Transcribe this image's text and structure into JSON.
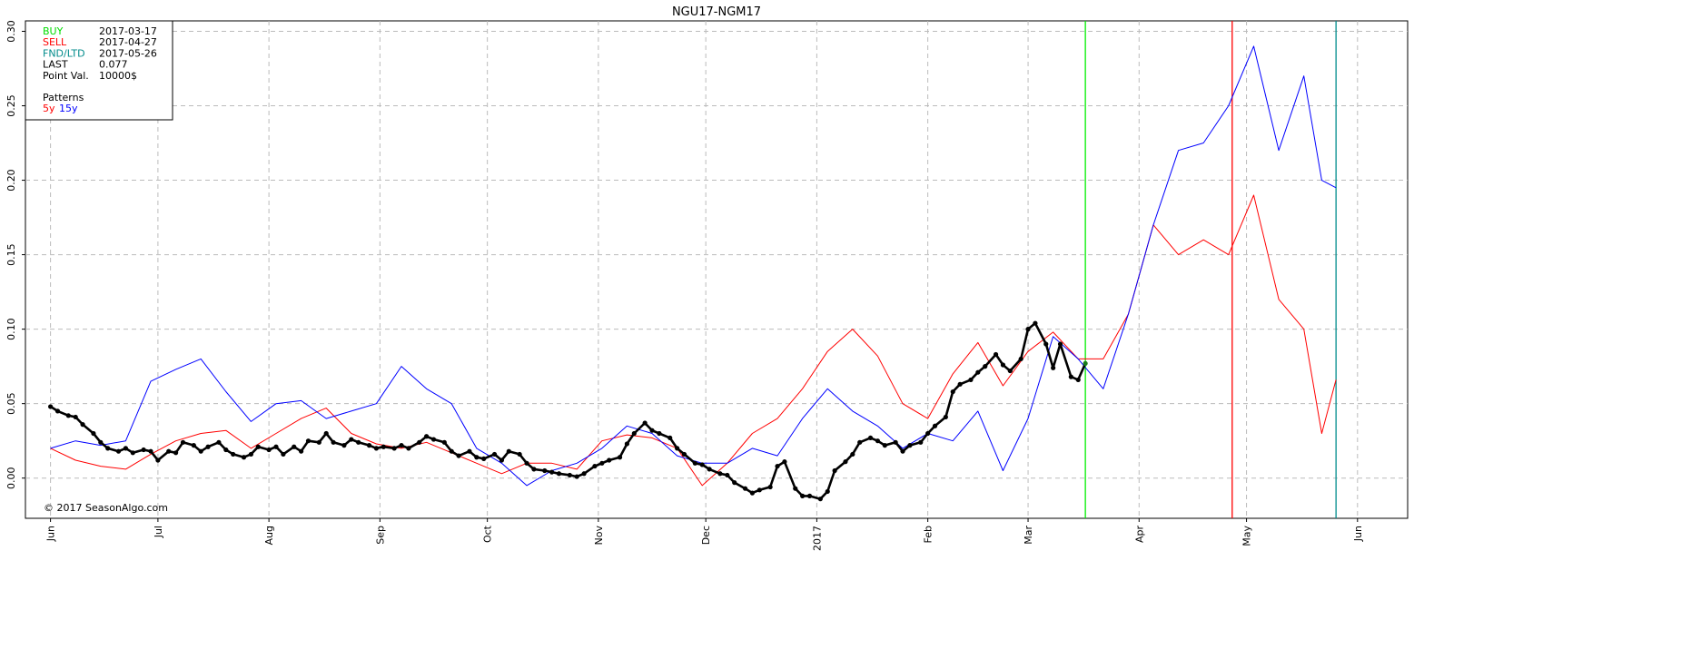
{
  "chart_data": {
    "type": "line",
    "title": "NGU17-NGM17",
    "xlabel": "",
    "ylabel": "",
    "ylim": [
      -0.027,
      0.307
    ],
    "xlim": [
      "2016-05-25",
      "2017-06-15"
    ],
    "grid": true,
    "legend_placement": "top-left",
    "y_ticks": [
      0.0,
      0.05,
      0.1,
      0.15,
      0.2,
      0.25,
      0.3
    ],
    "y_tick_labels": [
      "0.00",
      "0.05",
      "0.10",
      "0.15",
      "0.20",
      "0.25",
      "0.30"
    ],
    "x_ticks": [
      {
        "date": "2016-06-01",
        "label": "Jun"
      },
      {
        "date": "2016-07-01",
        "label": "Jul"
      },
      {
        "date": "2016-08-01",
        "label": "Aug"
      },
      {
        "date": "2016-09-01",
        "label": "Sep"
      },
      {
        "date": "2016-10-01",
        "label": "Oct"
      },
      {
        "date": "2016-11-01",
        "label": "Nov"
      },
      {
        "date": "2016-12-01",
        "label": "Dec"
      },
      {
        "date": "2017-01-01",
        "label": "2017"
      },
      {
        "date": "2017-02-01",
        "label": "Feb"
      },
      {
        "date": "2017-03-01",
        "label": "Mar"
      },
      {
        "date": "2017-04-01",
        "label": "Apr"
      },
      {
        "date": "2017-05-01",
        "label": "May"
      },
      {
        "date": "2017-06-01",
        "label": "Jun"
      }
    ],
    "vertical_markers": [
      {
        "date": "2017-03-17",
        "color": "#00ee00"
      },
      {
        "date": "2017-04-27",
        "color": "#ff0000"
      },
      {
        "date": "2017-05-26",
        "color": "#008b8b"
      }
    ],
    "series": [
      {
        "name": "actual",
        "color": "#000000",
        "markers": true,
        "points": [
          [
            "2016-06-01",
            0.048
          ],
          [
            "2016-06-03",
            0.045
          ],
          [
            "2016-06-06",
            0.042
          ],
          [
            "2016-06-08",
            0.041
          ],
          [
            "2016-06-10",
            0.036
          ],
          [
            "2016-06-13",
            0.03
          ],
          [
            "2016-06-15",
            0.024
          ],
          [
            "2016-06-17",
            0.02
          ],
          [
            "2016-06-20",
            0.018
          ],
          [
            "2016-06-22",
            0.02
          ],
          [
            "2016-06-24",
            0.017
          ],
          [
            "2016-06-27",
            0.019
          ],
          [
            "2016-06-29",
            0.018
          ],
          [
            "2016-07-01",
            0.012
          ],
          [
            "2016-07-04",
            0.018
          ],
          [
            "2016-07-06",
            0.017
          ],
          [
            "2016-07-08",
            0.024
          ],
          [
            "2016-07-11",
            0.022
          ],
          [
            "2016-07-13",
            0.018
          ],
          [
            "2016-07-15",
            0.021
          ],
          [
            "2016-07-18",
            0.024
          ],
          [
            "2016-07-20",
            0.019
          ],
          [
            "2016-07-22",
            0.016
          ],
          [
            "2016-07-25",
            0.014
          ],
          [
            "2016-07-27",
            0.016
          ],
          [
            "2016-07-29",
            0.021
          ],
          [
            "2016-08-01",
            0.019
          ],
          [
            "2016-08-03",
            0.021
          ],
          [
            "2016-08-05",
            0.016
          ],
          [
            "2016-08-08",
            0.021
          ],
          [
            "2016-08-10",
            0.018
          ],
          [
            "2016-08-12",
            0.025
          ],
          [
            "2016-08-15",
            0.024
          ],
          [
            "2016-08-17",
            0.03
          ],
          [
            "2016-08-19",
            0.024
          ],
          [
            "2016-08-22",
            0.022
          ],
          [
            "2016-08-24",
            0.026
          ],
          [
            "2016-08-26",
            0.024
          ],
          [
            "2016-08-29",
            0.022
          ],
          [
            "2016-08-31",
            0.02
          ],
          [
            "2016-09-02",
            0.021
          ],
          [
            "2016-09-05",
            0.02
          ],
          [
            "2016-09-07",
            0.022
          ],
          [
            "2016-09-09",
            0.02
          ],
          [
            "2016-09-12",
            0.024
          ],
          [
            "2016-09-14",
            0.028
          ],
          [
            "2016-09-16",
            0.026
          ],
          [
            "2016-09-19",
            0.024
          ],
          [
            "2016-09-21",
            0.018
          ],
          [
            "2016-09-23",
            0.015
          ],
          [
            "2016-09-26",
            0.018
          ],
          [
            "2016-09-28",
            0.014
          ],
          [
            "2016-09-30",
            0.013
          ],
          [
            "2016-10-03",
            0.016
          ],
          [
            "2016-10-05",
            0.012
          ],
          [
            "2016-10-07",
            0.018
          ],
          [
            "2016-10-10",
            0.016
          ],
          [
            "2016-10-12",
            0.01
          ],
          [
            "2016-10-14",
            0.006
          ],
          [
            "2016-10-17",
            0.005
          ],
          [
            "2016-10-19",
            0.004
          ],
          [
            "2016-10-21",
            0.003
          ],
          [
            "2016-10-24",
            0.002
          ],
          [
            "2016-10-26",
            0.001
          ],
          [
            "2016-10-28",
            0.003
          ],
          [
            "2016-10-31",
            0.008
          ],
          [
            "2016-11-02",
            0.01
          ],
          [
            "2016-11-04",
            0.012
          ],
          [
            "2016-11-07",
            0.014
          ],
          [
            "2016-11-09",
            0.023
          ],
          [
            "2016-11-11",
            0.03
          ],
          [
            "2016-11-14",
            0.037
          ],
          [
            "2016-11-16",
            0.032
          ],
          [
            "2016-11-18",
            0.03
          ],
          [
            "2016-11-21",
            0.027
          ],
          [
            "2016-11-23",
            0.02
          ],
          [
            "2016-11-25",
            0.016
          ],
          [
            "2016-11-28",
            0.01
          ],
          [
            "2016-11-30",
            0.009
          ],
          [
            "2016-12-02",
            0.006
          ],
          [
            "2016-12-05",
            0.003
          ],
          [
            "2016-12-07",
            0.002
          ],
          [
            "2016-12-09",
            -0.003
          ],
          [
            "2016-12-12",
            -0.007
          ],
          [
            "2016-12-14",
            -0.01
          ],
          [
            "2016-12-16",
            -0.008
          ],
          [
            "2016-12-19",
            -0.006
          ],
          [
            "2016-12-21",
            0.008
          ],
          [
            "2016-12-23",
            0.011
          ],
          [
            "2016-12-26",
            -0.007
          ],
          [
            "2016-12-28",
            -0.012
          ],
          [
            "2016-12-30",
            -0.012
          ],
          [
            "2017-01-02",
            -0.014
          ],
          [
            "2017-01-04",
            -0.009
          ],
          [
            "2017-01-06",
            0.005
          ],
          [
            "2017-01-09",
            0.011
          ],
          [
            "2017-01-11",
            0.016
          ],
          [
            "2017-01-13",
            0.024
          ],
          [
            "2017-01-16",
            0.027
          ],
          [
            "2017-01-18",
            0.025
          ],
          [
            "2017-01-20",
            0.022
          ],
          [
            "2017-01-23",
            0.024
          ],
          [
            "2017-01-25",
            0.018
          ],
          [
            "2017-01-27",
            0.022
          ],
          [
            "2017-01-30",
            0.024
          ],
          [
            "2017-02-01",
            0.03
          ],
          [
            "2017-02-03",
            0.035
          ],
          [
            "2017-02-06",
            0.041
          ],
          [
            "2017-02-08",
            0.058
          ],
          [
            "2017-02-10",
            0.063
          ],
          [
            "2017-02-13",
            0.066
          ],
          [
            "2017-02-15",
            0.071
          ],
          [
            "2017-02-17",
            0.075
          ],
          [
            "2017-02-20",
            0.083
          ],
          [
            "2017-02-22",
            0.076
          ],
          [
            "2017-02-24",
            0.072
          ],
          [
            "2017-02-27",
            0.08
          ],
          [
            "2017-03-01",
            0.1
          ],
          [
            "2017-03-03",
            0.104
          ],
          [
            "2017-03-06",
            0.09
          ],
          [
            "2017-03-08",
            0.074
          ],
          [
            "2017-03-10",
            0.09
          ],
          [
            "2017-03-13",
            0.068
          ],
          [
            "2017-03-15",
            0.066
          ],
          [
            "2017-03-17",
            0.077
          ]
        ]
      },
      {
        "name": "5y",
        "color": "#ff0000",
        "markers": false,
        "points": [
          [
            "2016-06-01",
            0.02
          ],
          [
            "2016-06-08",
            0.012
          ],
          [
            "2016-06-15",
            0.008
          ],
          [
            "2016-06-22",
            0.006
          ],
          [
            "2016-06-29",
            0.016
          ],
          [
            "2016-07-06",
            0.025
          ],
          [
            "2016-07-13",
            0.03
          ],
          [
            "2016-07-20",
            0.032
          ],
          [
            "2016-07-27",
            0.02
          ],
          [
            "2016-08-03",
            0.03
          ],
          [
            "2016-08-10",
            0.04
          ],
          [
            "2016-08-17",
            0.047
          ],
          [
            "2016-08-24",
            0.03
          ],
          [
            "2016-08-31",
            0.023
          ],
          [
            "2016-09-07",
            0.02
          ],
          [
            "2016-09-14",
            0.024
          ],
          [
            "2016-09-21",
            0.017
          ],
          [
            "2016-09-28",
            0.01
          ],
          [
            "2016-10-05",
            0.003
          ],
          [
            "2016-10-12",
            0.01
          ],
          [
            "2016-10-19",
            0.01
          ],
          [
            "2016-10-26",
            0.006
          ],
          [
            "2016-11-02",
            0.025
          ],
          [
            "2016-11-09",
            0.029
          ],
          [
            "2016-11-16",
            0.027
          ],
          [
            "2016-11-23",
            0.02
          ],
          [
            "2016-11-30",
            -0.005
          ],
          [
            "2016-12-07",
            0.01
          ],
          [
            "2016-12-14",
            0.03
          ],
          [
            "2016-12-21",
            0.04
          ],
          [
            "2016-12-28",
            0.06
          ],
          [
            "2017-01-04",
            0.085
          ],
          [
            "2017-01-11",
            0.1
          ],
          [
            "2017-01-18",
            0.082
          ],
          [
            "2017-01-25",
            0.05
          ],
          [
            "2017-02-01",
            0.04
          ],
          [
            "2017-02-08",
            0.07
          ],
          [
            "2017-02-15",
            0.091
          ],
          [
            "2017-02-22",
            0.062
          ],
          [
            "2017-03-01",
            0.085
          ],
          [
            "2017-03-08",
            0.098
          ],
          [
            "2017-03-15",
            0.08
          ],
          [
            "2017-03-22",
            0.08
          ],
          [
            "2017-03-29",
            0.11
          ],
          [
            "2017-04-05",
            0.17
          ],
          [
            "2017-04-12",
            0.15
          ],
          [
            "2017-04-19",
            0.16
          ],
          [
            "2017-04-26",
            0.15
          ],
          [
            "2017-05-03",
            0.19
          ],
          [
            "2017-05-10",
            0.12
          ],
          [
            "2017-05-17",
            0.1
          ],
          [
            "2017-05-22",
            0.03
          ],
          [
            "2017-05-26",
            0.066
          ]
        ]
      },
      {
        "name": "15y",
        "color": "#0000ff",
        "markers": false,
        "points": [
          [
            "2016-06-01",
            0.02
          ],
          [
            "2016-06-08",
            0.025
          ],
          [
            "2016-06-15",
            0.022
          ],
          [
            "2016-06-22",
            0.025
          ],
          [
            "2016-06-29",
            0.065
          ],
          [
            "2016-07-06",
            0.073
          ],
          [
            "2016-07-13",
            0.08
          ],
          [
            "2016-07-20",
            0.058
          ],
          [
            "2016-07-27",
            0.038
          ],
          [
            "2016-08-03",
            0.05
          ],
          [
            "2016-08-10",
            0.052
          ],
          [
            "2016-08-17",
            0.04
          ],
          [
            "2016-08-24",
            0.045
          ],
          [
            "2016-08-31",
            0.05
          ],
          [
            "2016-09-07",
            0.075
          ],
          [
            "2016-09-14",
            0.06
          ],
          [
            "2016-09-21",
            0.05
          ],
          [
            "2016-09-28",
            0.02
          ],
          [
            "2016-10-05",
            0.01
          ],
          [
            "2016-10-12",
            -0.005
          ],
          [
            "2016-10-19",
            0.005
          ],
          [
            "2016-10-26",
            0.01
          ],
          [
            "2016-11-02",
            0.02
          ],
          [
            "2016-11-09",
            0.035
          ],
          [
            "2016-11-16",
            0.03
          ],
          [
            "2016-11-23",
            0.015
          ],
          [
            "2016-11-30",
            0.01
          ],
          [
            "2016-12-07",
            0.01
          ],
          [
            "2016-12-14",
            0.02
          ],
          [
            "2016-12-21",
            0.015
          ],
          [
            "2016-12-28",
            0.04
          ],
          [
            "2017-01-04",
            0.06
          ],
          [
            "2017-01-11",
            0.045
          ],
          [
            "2017-01-18",
            0.035
          ],
          [
            "2017-01-25",
            0.02
          ],
          [
            "2017-02-01",
            0.03
          ],
          [
            "2017-02-08",
            0.025
          ],
          [
            "2017-02-15",
            0.045
          ],
          [
            "2017-02-22",
            0.005
          ],
          [
            "2017-03-01",
            0.04
          ],
          [
            "2017-03-08",
            0.095
          ],
          [
            "2017-03-15",
            0.08
          ],
          [
            "2017-03-22",
            0.06
          ],
          [
            "2017-03-29",
            0.11
          ],
          [
            "2017-04-05",
            0.17
          ],
          [
            "2017-04-12",
            0.22
          ],
          [
            "2017-04-19",
            0.225
          ],
          [
            "2017-04-26",
            0.25
          ],
          [
            "2017-05-03",
            0.29
          ],
          [
            "2017-05-10",
            0.22
          ],
          [
            "2017-05-17",
            0.27
          ],
          [
            "2017-05-22",
            0.2
          ],
          [
            "2017-05-26",
            0.195
          ]
        ]
      }
    ]
  },
  "legend": {
    "rows": [
      {
        "label": "BUY",
        "value": "2017-03-17",
        "color": "#00dd00"
      },
      {
        "label": "SELL",
        "value": "2017-04-27",
        "color": "#ff0000"
      },
      {
        "label": "FND/LTD",
        "value": "2017-05-26",
        "color": "#008b8b"
      },
      {
        "label": "LAST",
        "value": "0.077",
        "color": "#000000"
      },
      {
        "label": "Point Val.",
        "value": "10000$",
        "color": "#000000"
      }
    ],
    "patterns_label": "Patterns",
    "pattern_5y": "5y",
    "pattern_15y": "15y",
    "pattern_5y_color": "#ff0000",
    "pattern_15y_color": "#0000ff"
  },
  "copyright": "© 2017 SeasonAlgo.com"
}
